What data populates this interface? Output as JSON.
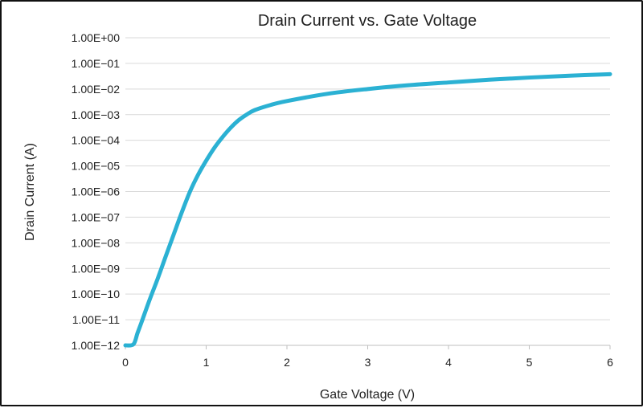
{
  "chart_data": {
    "type": "line",
    "title": "Drain Current vs. Gate Voltage",
    "xlabel": "Gate Voltage (V)",
    "ylabel": "Drain Current (A)",
    "y_scale": "log",
    "xlim": [
      0,
      6
    ],
    "ylim": [
      1e-12,
      1
    ],
    "grid": "horizontal",
    "legend": "none",
    "x_ticks": [
      {
        "value": 0,
        "label": "0"
      },
      {
        "value": 1,
        "label": "1"
      },
      {
        "value": 2,
        "label": "2"
      },
      {
        "value": 3,
        "label": "3"
      },
      {
        "value": 4,
        "label": "4"
      },
      {
        "value": 5,
        "label": "5"
      },
      {
        "value": 6,
        "label": "6"
      }
    ],
    "y_ticks": [
      {
        "value": 1.0,
        "label": "1.00E+00"
      },
      {
        "value": 0.1,
        "label": "1.00E−01"
      },
      {
        "value": 0.01,
        "label": "1.00E−02"
      },
      {
        "value": 0.001,
        "label": "1.00E−03"
      },
      {
        "value": 0.0001,
        "label": "1.00E−04"
      },
      {
        "value": 1e-05,
        "label": "1.00E−05"
      },
      {
        "value": 1e-06,
        "label": "1.00E−06"
      },
      {
        "value": 1e-07,
        "label": "1.00E−07"
      },
      {
        "value": 1e-08,
        "label": "1.00E−08"
      },
      {
        "value": 1e-09,
        "label": "1.00E−09"
      },
      {
        "value": 1e-10,
        "label": "1.00E−10"
      },
      {
        "value": 1e-11,
        "label": "1.00E−11"
      },
      {
        "value": 1e-12,
        "label": "1.00E−12"
      }
    ],
    "series": [
      {
        "color": "#2bb1d3",
        "points": [
          {
            "x": 0.0,
            "y": 1e-12
          },
          {
            "x": 0.1,
            "y": 1.1e-12
          },
          {
            "x": 0.15,
            "y": 3e-12
          },
          {
            "x": 0.2,
            "y": 8e-12
          },
          {
            "x": 0.3,
            "y": 6e-11
          },
          {
            "x": 0.4,
            "y": 4e-10
          },
          {
            "x": 0.5,
            "y": 3e-09
          },
          {
            "x": 0.6,
            "y": 2.2e-08
          },
          {
            "x": 0.7,
            "y": 1.6e-07
          },
          {
            "x": 0.8,
            "y": 1e-06
          },
          {
            "x": 0.9,
            "y": 4.5e-06
          },
          {
            "x": 1.0,
            "y": 1.6e-05
          },
          {
            "x": 1.1,
            "y": 5e-05
          },
          {
            "x": 1.2,
            "y": 0.00013
          },
          {
            "x": 1.3,
            "y": 0.0003
          },
          {
            "x": 1.4,
            "y": 0.0006
          },
          {
            "x": 1.5,
            "y": 0.001
          },
          {
            "x": 1.6,
            "y": 0.0015
          },
          {
            "x": 1.8,
            "y": 0.0024
          },
          {
            "x": 2.0,
            "y": 0.0034
          },
          {
            "x": 2.5,
            "y": 0.0065
          },
          {
            "x": 3.0,
            "y": 0.01
          },
          {
            "x": 3.5,
            "y": 0.014
          },
          {
            "x": 4.0,
            "y": 0.018
          },
          {
            "x": 4.5,
            "y": 0.023
          },
          {
            "x": 5.0,
            "y": 0.028
          },
          {
            "x": 5.5,
            "y": 0.033
          },
          {
            "x": 6.0,
            "y": 0.038
          }
        ]
      }
    ]
  }
}
